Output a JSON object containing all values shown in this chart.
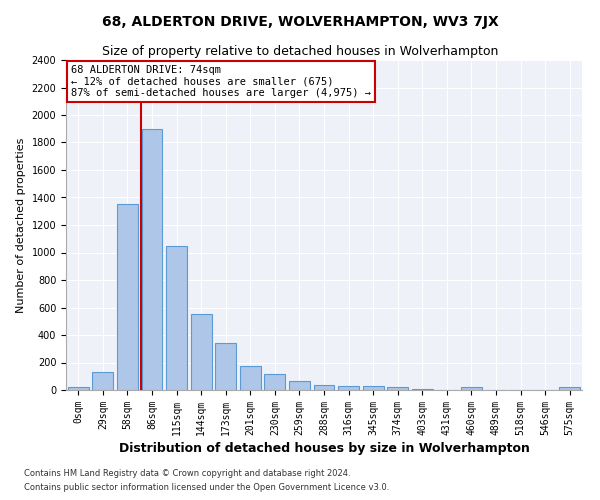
{
  "title": "68, ALDERTON DRIVE, WOLVERHAMPTON, WV3 7JX",
  "subtitle": "Size of property relative to detached houses in Wolverhampton",
  "xlabel": "Distribution of detached houses by size in Wolverhampton",
  "ylabel": "Number of detached properties",
  "footer1": "Contains HM Land Registry data © Crown copyright and database right 2024.",
  "footer2": "Contains public sector information licensed under the Open Government Licence v3.0.",
  "bar_labels": [
    "0sqm",
    "29sqm",
    "58sqm",
    "86sqm",
    "115sqm",
    "144sqm",
    "173sqm",
    "201sqm",
    "230sqm",
    "259sqm",
    "288sqm",
    "316sqm",
    "345sqm",
    "374sqm",
    "403sqm",
    "431sqm",
    "460sqm",
    "489sqm",
    "518sqm",
    "546sqm",
    "575sqm"
  ],
  "bar_values": [
    20,
    130,
    1350,
    1900,
    1050,
    550,
    340,
    175,
    115,
    65,
    40,
    30,
    30,
    20,
    10,
    0,
    20,
    0,
    0,
    0,
    20
  ],
  "bar_color": "#aec6e8",
  "bar_edge_color": "#5b9bd5",
  "property_label": "68 ALDERTON DRIVE: 74sqm",
  "ann_line1": "68 ALDERTON DRIVE: 74sqm",
  "ann_line2": "← 12% of detached houses are smaller (675)",
  "ann_line3": "87% of semi-detached houses are larger (4,975) →",
  "vline_pos": 2.57,
  "annotation_box_color": "#cc0000",
  "ylim": [
    0,
    2400
  ],
  "yticks": [
    0,
    200,
    400,
    600,
    800,
    1000,
    1200,
    1400,
    1600,
    1800,
    2000,
    2200,
    2400
  ],
  "bg_color": "#eef2f8",
  "grid_color": "#ffffff",
  "fig_bg_color": "#ffffff",
  "title_fontsize": 10,
  "subtitle_fontsize": 9,
  "xlabel_fontsize": 9,
  "ylabel_fontsize": 8,
  "tick_fontsize": 7,
  "ann_fontsize": 7.5,
  "footer_fontsize": 6
}
